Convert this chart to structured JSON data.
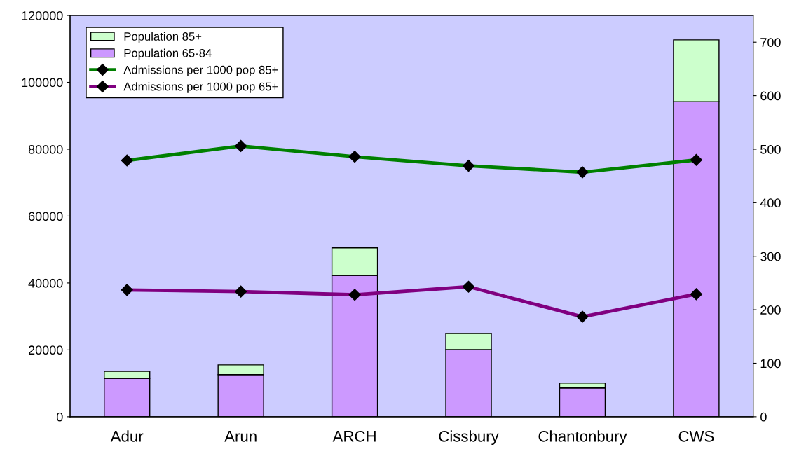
{
  "chart_data": {
    "type": "bar",
    "stacked": true,
    "categories": [
      "Adur",
      "Arun",
      "ARCH",
      "Cissbury",
      "Chantonbury",
      "CWS"
    ],
    "series": [
      {
        "name": "Population 65-84",
        "color": "#cc99ff",
        "values": [
          11500,
          12600,
          42300,
          20100,
          8600,
          94200
        ]
      },
      {
        "name": "Population 85+",
        "color": "#ccffcc",
        "values": [
          2100,
          2900,
          8200,
          4800,
          1450,
          18500
        ]
      },
      {
        "name": "Admissions per 1000 pop 85+",
        "type": "line",
        "axis": "y2",
        "color": "#008000",
        "values": [
          479,
          506,
          486,
          469,
          457,
          480
        ]
      },
      {
        "name": "Admissions per 1000 pop 65+",
        "type": "line",
        "axis": "y2",
        "color": "#800080",
        "values": [
          237,
          234,
          228,
          243,
          187,
          229
        ]
      }
    ],
    "ylim": [
      0,
      120000
    ],
    "yticks": [
      0,
      20000,
      40000,
      60000,
      80000,
      100000,
      120000
    ],
    "y2lim": [
      0,
      750
    ],
    "y2ticks": [
      0,
      100,
      200,
      300,
      400,
      500,
      600,
      700
    ],
    "marker": "diamond",
    "line_style": "solid",
    "grid": false,
    "legend": "top left"
  }
}
